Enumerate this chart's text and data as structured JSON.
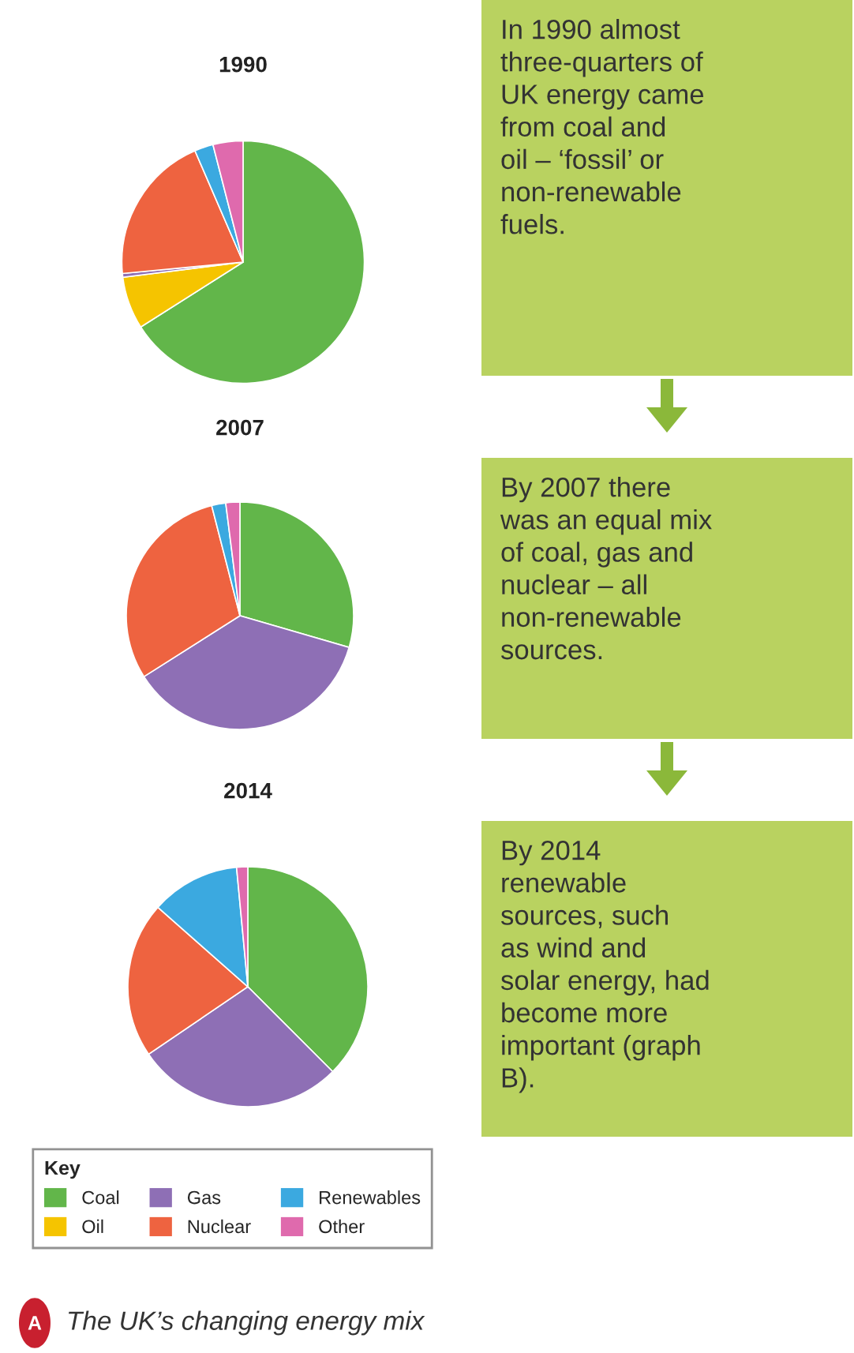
{
  "chart_data": [
    {
      "type": "pie",
      "title": "1990",
      "categories": [
        "Coal",
        "Oil",
        "Gas",
        "Nuclear",
        "Renewables",
        "Other"
      ],
      "values": [
        66,
        7,
        0.5,
        20,
        2.5,
        4
      ],
      "colors": [
        "#62b64a",
        "#f5c400",
        "#8e6fb5",
        "#ee6340",
        "#3ba9e0",
        "#df6aad"
      ],
      "legend": "bottom",
      "legend_title": "Key",
      "annotations": [
        "In 1990 almost\nthree-quarters of\nUK energy came\nfrom coal and\noil – ‘fossil’ or\nnon-renewable\nfuels."
      ]
    },
    {
      "type": "pie",
      "title": "2007",
      "categories": [
        null,
        null,
        null,
        null,
        null
      ],
      "values": [
        29.5,
        36.5,
        30,
        2,
        2
      ],
      "colors": [
        "#62b64a",
        "#8e6fb5",
        "#ee6340",
        "#3ba9e0",
        "#df6aad"
      ],
      "annotations": [
        "By 2007 there\nwas an equal mix\nof coal, gas and\nnuclear – all\nnon-renewable\nsources."
      ]
    },
    {
      "type": "pie",
      "title": "2014",
      "categories": [
        null,
        null,
        null,
        null,
        null
      ],
      "values": [
        37.5,
        28,
        21,
        12,
        1.5
      ],
      "colors": [
        "#62b64a",
        "#8e6fb5",
        "#ee6340",
        "#3ba9e0",
        "#df6aad"
      ],
      "annotations": [
        "By 2014\nrenewable\nsources, such\nas wind and\nsolar energy, had\nbecome more\nimportant (graph\nB).",
        "A",
        "The UK’s changing energy mix"
      ]
    }
  ]
}
